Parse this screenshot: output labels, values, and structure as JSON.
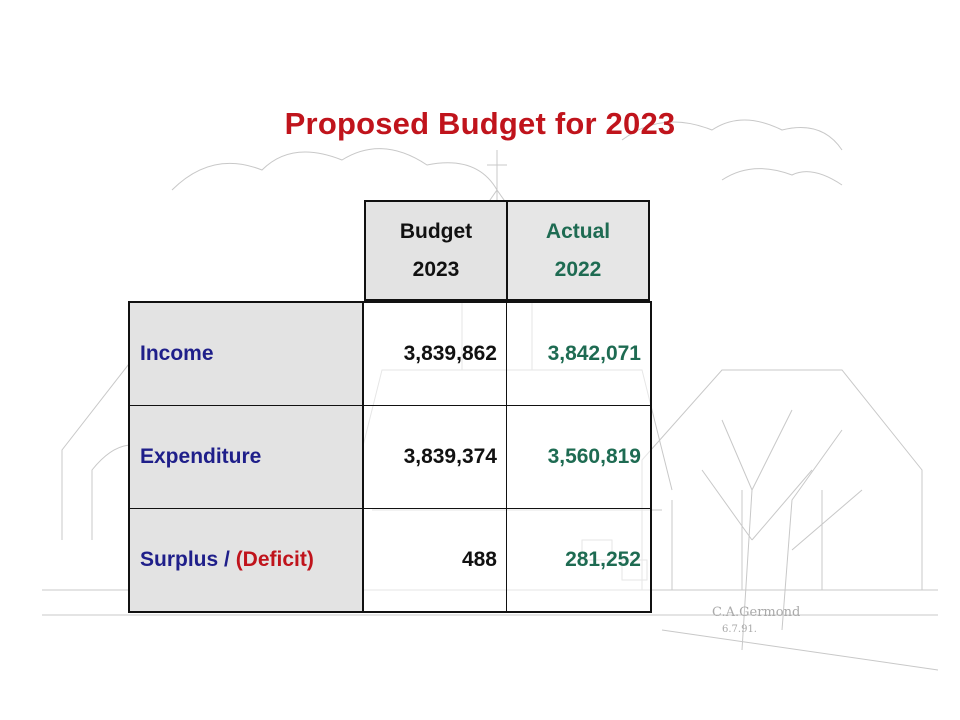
{
  "title": "Proposed Budget for 2023",
  "colors": {
    "title": "#c0141c",
    "label": "#1f1f8a",
    "deficit": "#c0141c",
    "actual": "#1e6b52",
    "budget": "#111111"
  },
  "header": {
    "budget": {
      "line1": "Budget",
      "line2": "2023"
    },
    "actual": {
      "line1": "Actual",
      "line2": "2022"
    }
  },
  "rows": [
    {
      "label": "Income",
      "budget": "3,839,862",
      "actual": "3,842,071"
    },
    {
      "label": "Expenditure",
      "budget": "3,839,374",
      "actual": "3,560,819"
    },
    {
      "label_part1": "Surplus / ",
      "label_part2": "(Deficit)",
      "budget": "488",
      "actual": "281,252"
    }
  ],
  "artist_signature": "C.A.Germond 6.7.91."
}
